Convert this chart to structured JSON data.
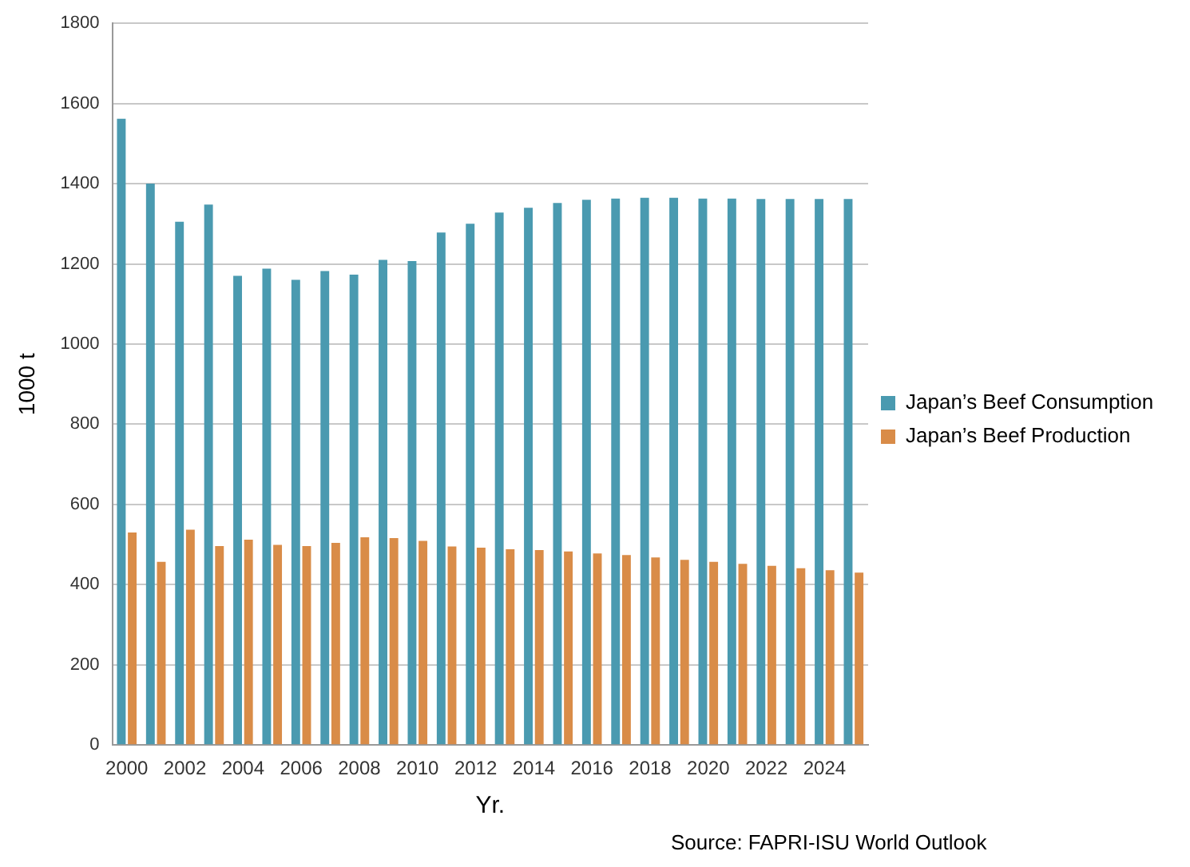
{
  "chart_data": {
    "type": "bar",
    "xlabel": "Yr.",
    "ylabel": "1000 t",
    "categories": [
      "2000",
      null,
      "2002",
      null,
      "2004",
      null,
      "2006",
      null,
      "2008",
      null,
      "2010",
      null,
      "2012",
      null,
      "2014",
      null,
      "2016",
      null,
      "2018",
      null,
      "2020",
      null,
      "2022",
      null,
      "2024",
      null
    ],
    "series": [
      {
        "name": "Japan’s Beef Consumption",
        "color": "#4a9ab0",
        "values": [
          1562,
          1400,
          1305,
          1348,
          1170,
          1188,
          1160,
          1182,
          1173,
          1210,
          1207,
          1278,
          1300,
          1328,
          1340,
          1352,
          1360,
          1363,
          1365,
          1365,
          1363,
          1363,
          1362,
          1362,
          1362,
          1362
        ]
      },
      {
        "name": "Japan’s Beef Production",
        "color": "#d98c48",
        "values": [
          530,
          457,
          537,
          496,
          512,
          499,
          496,
          504,
          518,
          516,
          509,
          495,
          492,
          488,
          486,
          483,
          478,
          474,
          468,
          462,
          457,
          452,
          447,
          441,
          436,
          430
        ]
      }
    ],
    "ylim": [
      0,
      1800
    ],
    "yticks": [
      0,
      200,
      400,
      600,
      800,
      1000,
      1200,
      1400,
      1600,
      1800
    ],
    "grid": "y",
    "legend": "right",
    "annotations": [
      "Source: FAPRI-ISU World Outlook"
    ]
  }
}
